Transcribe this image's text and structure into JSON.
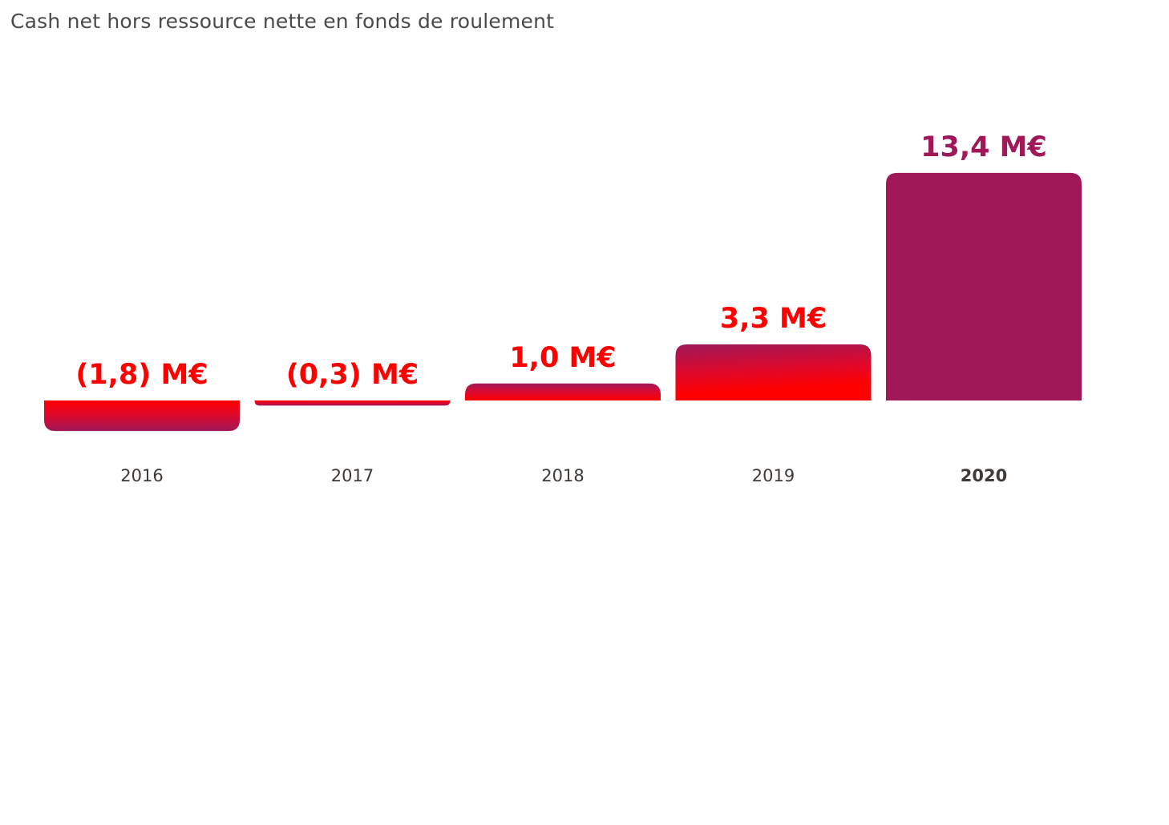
{
  "chart_data": {
    "type": "bar",
    "title": "Cash net hors ressource nette en fonds de roulement",
    "categories": [
      "2016",
      "2017",
      "2018",
      "2019",
      "2020"
    ],
    "values": [
      -1.8,
      -0.3,
      1.0,
      3.3,
      13.4
    ],
    "value_labels": [
      "(1,8) M€",
      "(0,3) M€",
      "1,0 M€",
      "3,3 M€",
      "13,4 M€"
    ],
    "unit": "M€",
    "highlight_category": "2020",
    "grid": false,
    "legend": "none",
    "colors": {
      "gradient_red": "#ff0000",
      "gradient_magenta": "#a01858",
      "highlight_bar": "#a01858",
      "value_label": "#ff0000",
      "highlight_label": "#a01858",
      "category_text": "#3f3a36"
    }
  }
}
